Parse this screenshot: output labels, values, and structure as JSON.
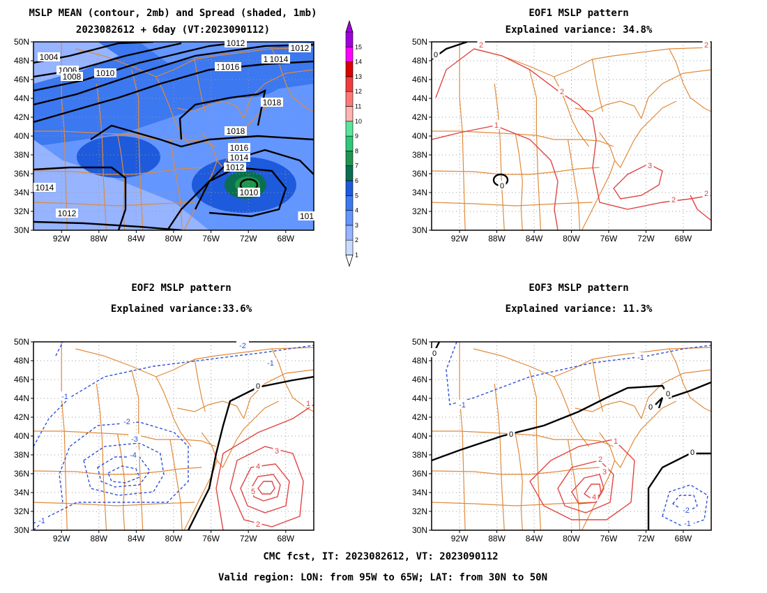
{
  "panels": {
    "mean": {
      "title1": "MSLP MEAN (contour, 2mb) and Spread (shaded, 1mb)",
      "title2": "2023082612 + 6day (VT:2023090112)"
    },
    "eof1": {
      "title1": "EOF1 MSLP pattern",
      "title2": "Explained variance: 34.8%"
    },
    "eof2": {
      "title1": "EOF2 MSLP pattern",
      "title2": "Explained variance:33.6%"
    },
    "eof3": {
      "title1": "EOF3 MSLP pattern",
      "title2": "Explained variance: 11.3%"
    }
  },
  "axes": {
    "lat_labels": [
      "50N",
      "48N",
      "46N",
      "44N",
      "42N",
      "40N",
      "38N",
      "36N",
      "34N",
      "32N",
      "30N"
    ],
    "lon_labels": [
      "92W",
      "88W",
      "84W",
      "80W",
      "76W",
      "72W",
      "68W"
    ],
    "lon_range": [
      -95,
      -65
    ],
    "lat_range": [
      30,
      50
    ]
  },
  "colorbar": {
    "levels": [
      "1",
      "2",
      "3",
      "4",
      "5",
      "6",
      "7",
      "8",
      "9",
      "10",
      "11",
      "12",
      "13",
      "14",
      "15"
    ],
    "colors": [
      "#c8dcff",
      "#96b4ff",
      "#6496ff",
      "#3c78f0",
      "#1e5adc",
      "#0a6e50",
      "#1e9650",
      "#2ec87a",
      "#5ae69e",
      "#ffb4b4",
      "#ff7878",
      "#f03c3c",
      "#dc0000",
      "#ff00ff",
      "#a000dc"
    ]
  },
  "contour_labels": {
    "mean": [
      "1004",
      "1006",
      "1008",
      "1010",
      "1012",
      "1014",
      "1016",
      "1018",
      "1018",
      "1016",
      "1014",
      "1012",
      "1010",
      "1014",
      "1012",
      "101",
      "1012",
      "1014",
      "1016"
    ],
    "eof1": [
      "0",
      "2",
      "2",
      "1",
      "0",
      "3",
      "2",
      "2",
      "2"
    ],
    "eof2": [
      "-2",
      "-1",
      "0",
      "-1",
      "-2",
      "-3",
      "-4",
      "1",
      "3",
      "4",
      "5",
      "2",
      "-1"
    ],
    "eof3": [
      "0",
      "-1",
      "-1",
      "0",
      "0",
      "0",
      "0",
      "1",
      "2",
      "3",
      "4",
      "-2",
      "-1"
    ]
  },
  "footer": {
    "line1": "CMC fcst, IT: 2023082612, VT: 2023090112",
    "line2": "Valid region: LON: from 95W to 65W; LAT: from 30N to 50N"
  },
  "colors": {
    "border": "#e08a3a",
    "positive": "#e04545",
    "negative": "#2e4fd8",
    "zero": "#000000",
    "grid": "#9a9a9a"
  }
}
